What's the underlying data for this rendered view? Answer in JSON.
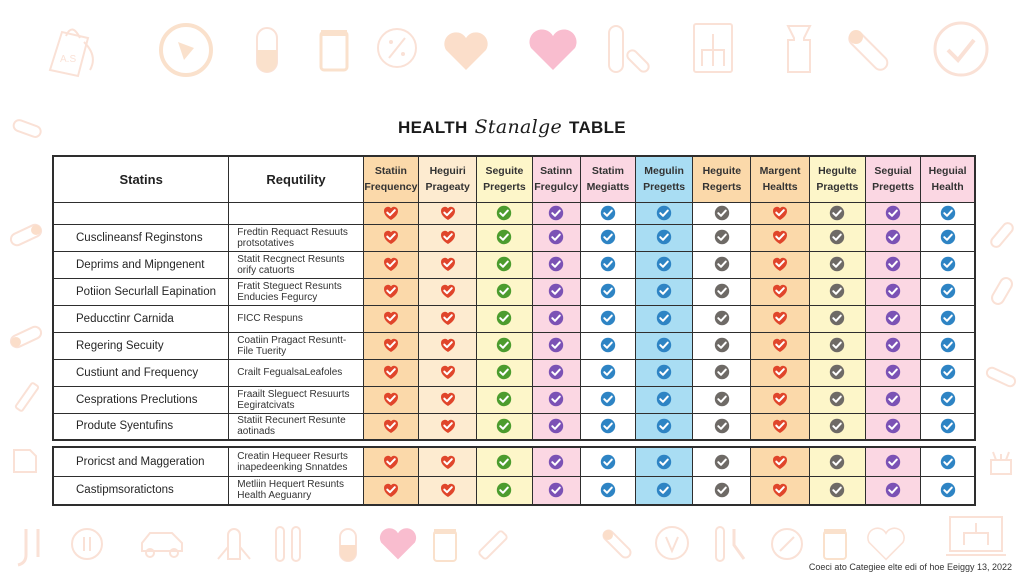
{
  "title": {
    "prefix": "HEALTH",
    "script_word": "Stanalge",
    "suffix": "TABLE"
  },
  "table": {
    "header": {
      "col1": "Statins",
      "col2": "Requtility",
      "columns": [
        {
          "line1": "Statiin",
          "line2": "Frequency",
          "bg": "#fbd9aa",
          "check_color": "#e0452b"
        },
        {
          "line1": "Heguiri",
          "line2": "Prageaty",
          "bg": "#fdebd0",
          "check_color": "#e0452b"
        },
        {
          "line1": "Seguite",
          "line2": "Pregerts",
          "bg": "#fdf6c9",
          "check_color": "#4c9c2e"
        },
        {
          "line1": "Satinn",
          "line2": "Fregulcy",
          "bg": "#fbd7e3",
          "check_color": "#7b52b5"
        },
        {
          "line1": "Statim",
          "line2": "Megiatts",
          "bg": "#fbd7e3",
          "check_color": "#2e84c4"
        },
        {
          "line1": "Megulin",
          "line2": "Pregetts",
          "bg": "#a9ddf3",
          "check_color": "#2e84c4"
        },
        {
          "line1": "Heguite",
          "line2": "Regerts",
          "bg": "#fbd9aa",
          "check_color": "#6e6a66"
        },
        {
          "line1": "Margent",
          "line2": "Healtts",
          "bg": "#fbd9aa",
          "check_color": "#e0452b"
        },
        {
          "line1": "Hegulte",
          "line2": "Pragetts",
          "bg": "#fdf6c9",
          "check_color": "#6e6a66"
        },
        {
          "line1": "Seguial",
          "line2": "Pregetts",
          "bg": "#fbd7e3",
          "check_color": "#7b52b5"
        },
        {
          "line1": "Heguial",
          "line2": "Health",
          "bg": "#fbd7e3",
          "check_color": "#2e84c4"
        }
      ]
    },
    "body_bg": [
      "#fbd9aa",
      "#fdebd0",
      "#fdf6c9",
      "#fbd7e3",
      "#ffffff",
      "#a9ddf3",
      "#ffffff",
      "#fbd9aa",
      "#fdf6c9",
      "#fbd7e3",
      "#ffffff"
    ],
    "rows": [
      {
        "name": "",
        "desc1": "",
        "desc2": ""
      },
      {
        "name": "Cusclineansf Reginstons",
        "desc1": "Fredtin Requact Resuuts",
        "desc2": "protsotatives"
      },
      {
        "name": "Deprims and Mipngenent",
        "desc1": "Statit Recgnect Resunts",
        "desc2": "orify catuorts"
      },
      {
        "name": "Potiion Securlall Eapination",
        "desc1": "Fratit Steguect Resunts",
        "desc2": "Enducies Fegurcy"
      },
      {
        "name": "Peducctinr Carnida",
        "desc1": "FICC Respuns",
        "desc2": ""
      },
      {
        "name": "Regering Secuity",
        "desc1": "Coatiin Pragact Resuntt-",
        "desc2": "File Tuerity"
      },
      {
        "name": "Custiunt and Frequency",
        "desc1": "Crailt FegualsaLeafoles",
        "desc2": ""
      },
      {
        "name": "Cesprations Preclutions",
        "desc1": "Fraailt Sleguect Resuurts",
        "desc2": "Eegiratcivats"
      },
      {
        "name": "Produte Syentufins",
        "desc1": "Statiit Recunert Resunte",
        "desc2": "aotinads"
      }
    ],
    "rows_sub": [
      {
        "name": "Proricst and Maggeration",
        "desc1": "Creatin Hequeer Resurts",
        "desc2": "inapedeenking Snnatdes"
      },
      {
        "name": "Castipmsoratictons",
        "desc1": "Metliin Hequert Resunts",
        "desc2": "Health Aeguanry"
      }
    ]
  },
  "footer": {
    "note": "Coeci ato Categiee elte edi of hoe Eeiggy 13, 2022"
  }
}
